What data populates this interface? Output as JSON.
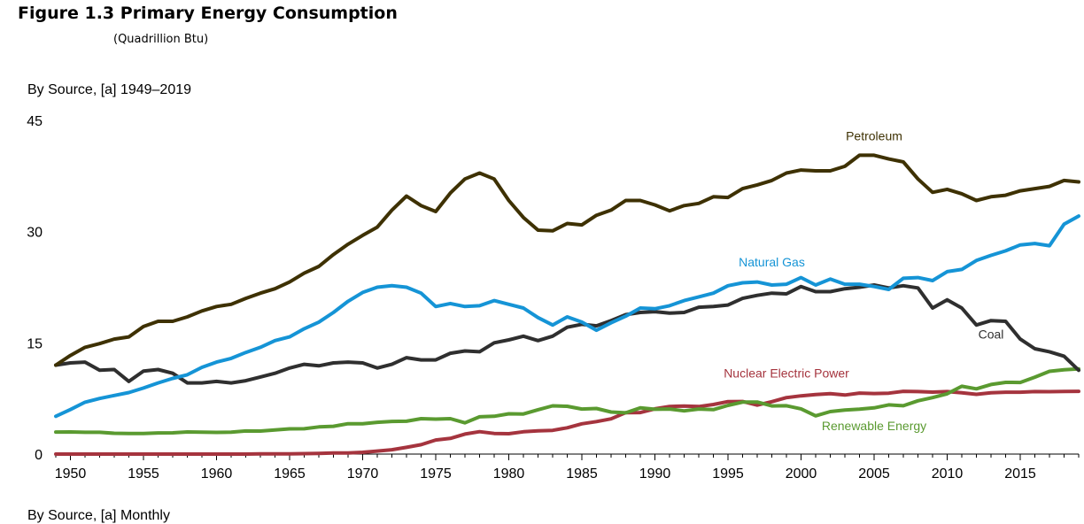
{
  "figure": {
    "title": "Figure 1.3  Primary Energy Consumption",
    "units": "(Quadrillion Btu)"
  },
  "sections": {
    "annual_title": "By Source, [a] 1949–2019",
    "monthly_title": "By Source, [a] Monthly"
  },
  "chart_data": {
    "type": "line",
    "title": "By Source, [a] 1949–2019",
    "xlabel": "",
    "ylabel": "",
    "xlim": [
      1949,
      2019
    ],
    "ylim": [
      0,
      45
    ],
    "yticks": [
      0,
      15,
      30,
      45
    ],
    "xticks": [
      1950,
      1955,
      1960,
      1965,
      1970,
      1975,
      1980,
      1985,
      1990,
      1995,
      2000,
      2005,
      2010,
      2015
    ],
    "grid": false,
    "legend": "inline labels",
    "series": [
      {
        "name": "Petroleum",
        "color": "#3e3103",
        "label_at": [
          2005,
          42.3
        ],
        "x": [
          1949,
          1950,
          1951,
          1952,
          1953,
          1954,
          1955,
          1956,
          1957,
          1958,
          1959,
          1960,
          1961,
          1962,
          1963,
          1964,
          1965,
          1966,
          1967,
          1968,
          1969,
          1970,
          1971,
          1972,
          1973,
          1974,
          1975,
          1976,
          1977,
          1978,
          1979,
          1980,
          1981,
          1982,
          1983,
          1984,
          1985,
          1986,
          1987,
          1988,
          1989,
          1990,
          1991,
          1992,
          1993,
          1994,
          1995,
          1996,
          1997,
          1998,
          1999,
          2000,
          2001,
          2002,
          2003,
          2004,
          2005,
          2006,
          2007,
          2008,
          2009,
          2010,
          2011,
          2012,
          2013,
          2014,
          2015,
          2016,
          2017,
          2018,
          2019
        ],
        "y": [
          12.0,
          13.3,
          14.4,
          14.9,
          15.5,
          15.8,
          17.2,
          17.9,
          17.9,
          18.5,
          19.3,
          19.9,
          20.2,
          21.0,
          21.7,
          22.3,
          23.2,
          24.4,
          25.3,
          26.9,
          28.3,
          29.5,
          30.6,
          32.9,
          34.8,
          33.5,
          32.7,
          35.2,
          37.1,
          37.9,
          37.1,
          34.2,
          31.9,
          30.2,
          30.1,
          31.1,
          30.9,
          32.2,
          32.9,
          34.2,
          34.2,
          33.6,
          32.8,
          33.5,
          33.8,
          34.7,
          34.6,
          35.8,
          36.3,
          36.9,
          37.9,
          38.3,
          38.2,
          38.2,
          38.8,
          40.3,
          40.3,
          39.8,
          39.4,
          37.1,
          35.3,
          35.7,
          35.1,
          34.2,
          34.7,
          34.9,
          35.5,
          35.8,
          36.1,
          36.9,
          36.7
        ]
      },
      {
        "name": "Natural Gas",
        "color": "#1594d6",
        "label_at": [
          1998,
          25.3
        ],
        "x": [
          1949,
          1950,
          1951,
          1952,
          1953,
          1954,
          1955,
          1956,
          1957,
          1958,
          1959,
          1960,
          1961,
          1962,
          1963,
          1964,
          1965,
          1966,
          1967,
          1968,
          1969,
          1970,
          1971,
          1972,
          1973,
          1974,
          1975,
          1976,
          1977,
          1978,
          1979,
          1980,
          1981,
          1982,
          1983,
          1984,
          1985,
          1986,
          1987,
          1988,
          1989,
          1990,
          1991,
          1992,
          1993,
          1994,
          1995,
          1996,
          1997,
          1998,
          1999,
          2000,
          2001,
          2002,
          2003,
          2004,
          2005,
          2006,
          2007,
          2008,
          2009,
          2010,
          2011,
          2012,
          2013,
          2014,
          2015,
          2016,
          2017,
          2018,
          2019
        ],
        "y": [
          5.1,
          6.0,
          7.0,
          7.5,
          7.9,
          8.3,
          8.9,
          9.6,
          10.2,
          10.7,
          11.7,
          12.4,
          12.9,
          13.7,
          14.4,
          15.3,
          15.8,
          16.9,
          17.8,
          19.1,
          20.6,
          21.8,
          22.5,
          22.7,
          22.5,
          21.7,
          19.9,
          20.3,
          19.9,
          20.0,
          20.7,
          20.2,
          19.7,
          18.4,
          17.4,
          18.5,
          17.8,
          16.7,
          17.7,
          18.6,
          19.7,
          19.6,
          20.0,
          20.7,
          21.2,
          21.7,
          22.7,
          23.1,
          23.2,
          22.8,
          22.9,
          23.8,
          22.8,
          23.6,
          22.9,
          22.9,
          22.6,
          22.2,
          23.7,
          23.8,
          23.4,
          24.6,
          24.9,
          26.1,
          26.8,
          27.4,
          28.2,
          28.4,
          28.1,
          31.0,
          32.1
        ]
      },
      {
        "name": "Coal",
        "color": "#2f2f2f",
        "label_at": [
          2013,
          15.6
        ],
        "x": [
          1949,
          1950,
          1951,
          1952,
          1953,
          1954,
          1955,
          1956,
          1957,
          1958,
          1959,
          1960,
          1961,
          1962,
          1963,
          1964,
          1965,
          1966,
          1967,
          1968,
          1969,
          1970,
          1971,
          1972,
          1973,
          1974,
          1975,
          1976,
          1977,
          1978,
          1979,
          1980,
          1981,
          1982,
          1983,
          1984,
          1985,
          1986,
          1987,
          1988,
          1989,
          1990,
          1991,
          1992,
          1993,
          1994,
          1995,
          1996,
          1997,
          1998,
          1999,
          2000,
          2001,
          2002,
          2003,
          2004,
          2005,
          2006,
          2007,
          2008,
          2009,
          2010,
          2011,
          2012,
          2013,
          2014,
          2015,
          2016,
          2017,
          2018,
          2019
        ],
        "y": [
          12.0,
          12.3,
          12.4,
          11.3,
          11.4,
          9.8,
          11.2,
          11.4,
          10.9,
          9.6,
          9.6,
          9.8,
          9.6,
          9.9,
          10.4,
          10.9,
          11.6,
          12.1,
          11.9,
          12.3,
          12.4,
          12.3,
          11.6,
          12.1,
          13.0,
          12.7,
          12.7,
          13.6,
          13.9,
          13.8,
          15.0,
          15.4,
          15.9,
          15.3,
          15.9,
          17.1,
          17.5,
          17.3,
          18.0,
          18.8,
          19.1,
          19.2,
          19.0,
          19.1,
          19.8,
          19.9,
          20.1,
          21.0,
          21.4,
          21.7,
          21.6,
          22.6,
          21.9,
          21.9,
          22.3,
          22.5,
          22.8,
          22.4,
          22.7,
          22.4,
          19.7,
          20.8,
          19.7,
          17.4,
          18.0,
          17.9,
          15.5,
          14.2,
          13.8,
          13.2,
          11.3
        ]
      },
      {
        "name": "Nuclear Electric Power",
        "color": "#a5343e",
        "label_at": [
          1999,
          10.3
        ],
        "x": [
          1949,
          1950,
          1951,
          1952,
          1953,
          1954,
          1955,
          1956,
          1957,
          1958,
          1959,
          1960,
          1961,
          1962,
          1963,
          1964,
          1965,
          1966,
          1967,
          1968,
          1969,
          1970,
          1971,
          1972,
          1973,
          1974,
          1975,
          1976,
          1977,
          1978,
          1979,
          1980,
          1981,
          1982,
          1983,
          1984,
          1985,
          1986,
          1987,
          1988,
          1989,
          1990,
          1991,
          1992,
          1993,
          1994,
          1995,
          1996,
          1997,
          1998,
          1999,
          2000,
          2001,
          2002,
          2003,
          2004,
          2005,
          2006,
          2007,
          2008,
          2009,
          2010,
          2011,
          2012,
          2013,
          2014,
          2015,
          2016,
          2017,
          2018,
          2019
        ],
        "y": [
          0,
          0,
          0,
          0,
          0,
          0,
          0,
          0,
          0,
          0,
          0,
          0,
          0,
          0,
          0.02,
          0.03,
          0.04,
          0.06,
          0.09,
          0.14,
          0.15,
          0.24,
          0.41,
          0.58,
          0.91,
          1.27,
          1.9,
          2.11,
          2.7,
          3.02,
          2.78,
          2.74,
          3.01,
          3.13,
          3.2,
          3.55,
          4.08,
          4.38,
          4.75,
          5.59,
          5.6,
          6.1,
          6.42,
          6.48,
          6.41,
          6.69,
          7.08,
          7.09,
          6.6,
          7.07,
          7.61,
          7.86,
          8.03,
          8.14,
          7.96,
          8.22,
          8.16,
          8.21,
          8.46,
          8.43,
          8.36,
          8.43,
          8.27,
          8.06,
          8.27,
          8.34,
          8.34,
          8.43,
          8.42,
          8.44,
          8.46
        ]
      },
      {
        "name": "Renewable Energy",
        "color": "#5a9a30",
        "label_at": [
          2005,
          3.2
        ],
        "x": [
          1949,
          1950,
          1951,
          1952,
          1953,
          1954,
          1955,
          1956,
          1957,
          1958,
          1959,
          1960,
          1961,
          1962,
          1963,
          1964,
          1965,
          1966,
          1967,
          1968,
          1969,
          1970,
          1971,
          1972,
          1973,
          1974,
          1975,
          1976,
          1977,
          1978,
          1979,
          1980,
          1981,
          1982,
          1983,
          1984,
          1985,
          1986,
          1987,
          1988,
          1989,
          1990,
          1991,
          1992,
          1993,
          1994,
          1995,
          1996,
          1997,
          1998,
          1999,
          2000,
          2001,
          2002,
          2003,
          2004,
          2005,
          2006,
          2007,
          2008,
          2009,
          2010,
          2011,
          2012,
          2013,
          2014,
          2015,
          2016,
          2017,
          2018,
          2019
        ],
        "y": [
          2.97,
          2.98,
          2.94,
          2.94,
          2.8,
          2.78,
          2.78,
          2.85,
          2.87,
          2.98,
          2.96,
          2.93,
          2.95,
          3.11,
          3.1,
          3.26,
          3.4,
          3.41,
          3.67,
          3.75,
          4.1,
          4.08,
          4.28,
          4.4,
          4.43,
          4.77,
          4.72,
          4.77,
          4.21,
          5.02,
          5.1,
          5.43,
          5.41,
          5.98,
          6.5,
          6.44,
          6.08,
          6.15,
          5.67,
          5.56,
          6.23,
          6.04,
          6.07,
          5.83,
          6.08,
          5.99,
          6.56,
          7.01,
          7.02,
          6.49,
          6.52,
          6.1,
          5.16,
          5.73,
          5.94,
          6.06,
          6.23,
          6.64,
          6.52,
          7.19,
          7.61,
          8.13,
          9.14,
          8.8,
          9.38,
          9.67,
          9.66,
          10.37,
          11.16,
          11.38,
          11.48
        ]
      }
    ]
  }
}
